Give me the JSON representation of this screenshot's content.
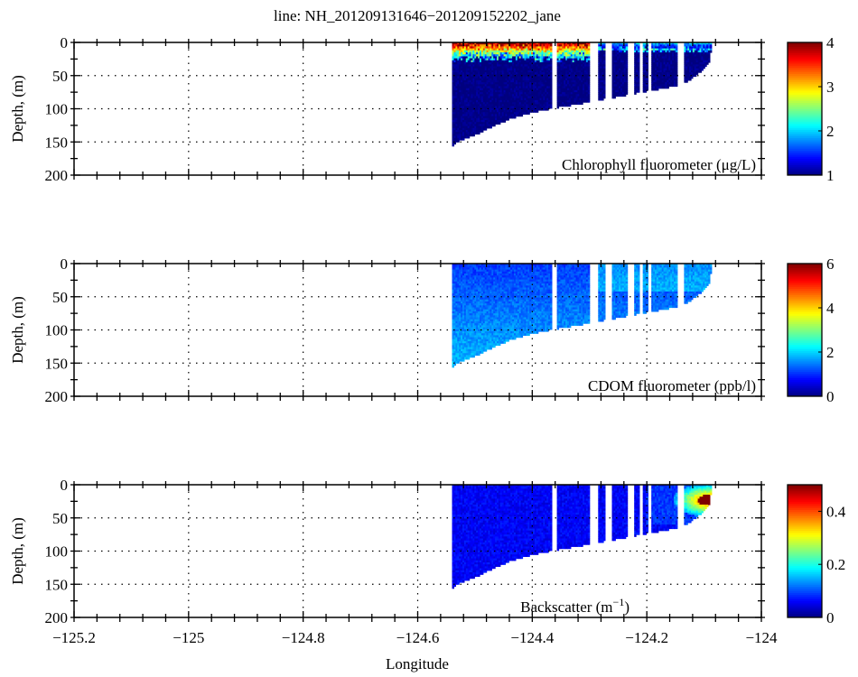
{
  "chart_data": {
    "type": "heatmap",
    "title": "line: NH_201209131646−201209152202_jane",
    "xlabel": "Longitude",
    "xlim": [
      -125.2,
      -124.0
    ],
    "xticks": [
      -125.2,
      -125,
      -124.8,
      -124.6,
      -124.4,
      -124.2,
      -124
    ],
    "xtick_labels": [
      "−125.2",
      "−125",
      "−124.8",
      "−124.6",
      "−124.4",
      "−124.2",
      "−124"
    ],
    "grid": true,
    "section": {
      "bottom_profile": [
        [
          -124.54,
          155
        ],
        [
          -124.53,
          148
        ],
        [
          -124.5,
          138
        ],
        [
          -124.47,
          125
        ],
        [
          -124.44,
          114
        ],
        [
          -124.4,
          104
        ],
        [
          -124.36,
          97
        ],
        [
          -124.3,
          88
        ],
        [
          -124.25,
          80
        ],
        [
          -124.2,
          72
        ],
        [
          -124.15,
          64
        ],
        [
          -124.13,
          58
        ],
        [
          -124.11,
          45
        ],
        [
          -124.09,
          28
        ],
        [
          -124.088,
          10
        ]
      ],
      "lon_start": -124.54,
      "lon_end": -124.088,
      "gaps": [
        [
          -124.366,
          -124.358
        ],
        [
          -124.299,
          -124.284
        ],
        [
          -124.273,
          -124.262
        ],
        [
          -124.233,
          -124.222
        ],
        [
          -124.213,
          -124.207
        ],
        [
          -124.199,
          -124.193
        ],
        [
          -124.146,
          -124.136
        ]
      ]
    },
    "panels": [
      {
        "name": "chlorophyll",
        "ylabel": "Depth, (m)",
        "ylim": [
          0,
          200
        ],
        "yticks": [
          0,
          50,
          100,
          150,
          200
        ],
        "label": "Chlorophyll fluorometer (μg/L)",
        "clim": [
          1,
          4
        ],
        "cbar_ticks": [
          1,
          2,
          3,
          4
        ],
        "background_value": 1.0,
        "features": [
          {
            "kind": "surface-layer",
            "lon_range": [
              -124.54,
              -124.3
            ],
            "depth_max": 18,
            "value": 3.8
          },
          {
            "kind": "surface-layer",
            "lon_range": [
              -124.3,
              -124.088
            ],
            "depth_max": 6,
            "value": 1.6
          }
        ]
      },
      {
        "name": "cdom",
        "ylabel": "Depth, (m)",
        "ylim": [
          0,
          200
        ],
        "yticks": [
          0,
          50,
          100,
          150,
          200
        ],
        "label": "CDOM fluorometer (ppb/l)",
        "clim": [
          0,
          6
        ],
        "cbar_ticks": [
          0,
          2,
          4,
          6
        ],
        "background_value": 1.1,
        "features": [
          {
            "kind": "deep-increase",
            "value": 1.8
          }
        ]
      },
      {
        "name": "backscatter",
        "ylabel": "Depth, (m)",
        "ylim": [
          0,
          200
        ],
        "yticks": [
          0,
          50,
          100,
          150,
          200
        ],
        "label": "Backscatter (m",
        "label_sup": "−1",
        "label_end": ")",
        "clim": [
          0,
          0.5
        ],
        "cbar_ticks": [
          0,
          0.2,
          0.4
        ],
        "cbar_tick_labels": [
          "0",
          "0.2",
          "0.4"
        ],
        "background_value": 0.06,
        "features": [
          {
            "kind": "hotspot",
            "lon": -124.092,
            "depth": 22,
            "value": 0.5
          }
        ]
      }
    ]
  }
}
